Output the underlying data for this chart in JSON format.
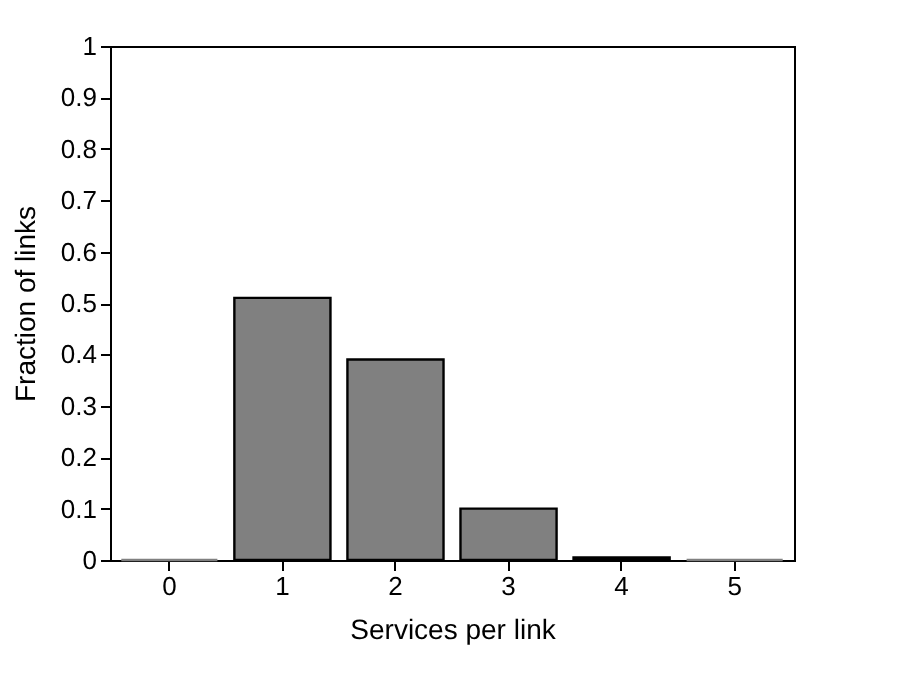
{
  "chart_data": {
    "type": "bar",
    "xlabel": "Services per link",
    "ylabel": "Fraction of links",
    "categories": [
      "0",
      "1",
      "2",
      "3",
      "4",
      "5"
    ],
    "values": [
      0,
      0.51,
      0.39,
      0.1,
      0.005,
      0
    ],
    "color": "#808080",
    "ylim": [
      0,
      1
    ],
    "yticks": [
      0,
      0.1,
      0.2,
      0.3,
      0.4,
      0.5,
      0.6,
      0.7,
      0.8,
      0.9,
      1
    ],
    "grid": false
  }
}
